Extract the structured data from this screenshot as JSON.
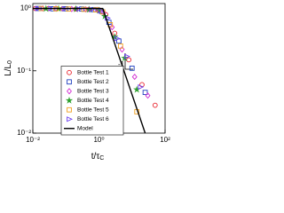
{
  "chart_data": {
    "type": "scatter",
    "xlabel": "t/τ",
    "xlabel_subscript": "C",
    "ylabel": "L/L",
    "ylabel_subscript": "0",
    "xlog": true,
    "ylog": true,
    "xlim": [
      0.01,
      100
    ],
    "ylim": [
      0.01,
      1.2
    ],
    "xticks": [
      {
        "value": 0.01,
        "label": "10⁻²"
      },
      {
        "value": 1,
        "label": "10⁰"
      },
      {
        "value": 100,
        "label": "10²"
      }
    ],
    "yticks": [
      {
        "value": 0.01,
        "label": "10⁻²"
      },
      {
        "value": 0.1,
        "label": "10⁻¹"
      },
      {
        "value": 1,
        "label": "10⁰"
      }
    ],
    "annotation": "-1",
    "legend": "lower left",
    "series": [
      {
        "name": "Bottle Test 1",
        "marker": "circle",
        "color": "#e8202a",
        "x": [
          0.012,
          0.03,
          0.08,
          0.2,
          0.5,
          1.0,
          1.6,
          3,
          8,
          20,
          50
        ],
        "y": [
          1,
          1,
          0.99,
          0.98,
          0.97,
          0.95,
          0.8,
          0.4,
          0.15,
          0.06,
          0.028
        ]
      },
      {
        "name": "Bottle Test 2",
        "marker": "square",
        "color": "#1f3fbf",
        "x": [
          0.015,
          0.04,
          0.1,
          0.3,
          0.7,
          1.2,
          2,
          4,
          10,
          25
        ],
        "y": [
          1,
          0.99,
          0.99,
          0.98,
          0.96,
          0.9,
          0.6,
          0.3,
          0.11,
          0.045
        ]
      },
      {
        "name": "Bottle Test 3",
        "marker": "diamond",
        "color": "#d22cd2",
        "x": [
          0.02,
          0.05,
          0.15,
          0.4,
          0.9,
          1.4,
          2.5,
          5,
          12,
          30
        ],
        "y": [
          1,
          1,
          0.98,
          0.97,
          0.95,
          0.85,
          0.5,
          0.22,
          0.08,
          0.04
        ]
      },
      {
        "name": "Bottle Test 4",
        "marker": "star",
        "color": "#2ca02c",
        "x": [
          0.025,
          0.06,
          0.2,
          0.5,
          1.0,
          1.5,
          3,
          6,
          14
        ],
        "y": [
          0.99,
          0.99,
          0.98,
          0.96,
          0.93,
          0.75,
          0.35,
          0.16,
          0.05
        ]
      },
      {
        "name": "Bottle Test 5",
        "marker": "square",
        "color": "#f0a020",
        "x": [
          0.018,
          0.05,
          0.12,
          0.35,
          0.8,
          1.3,
          2.2,
          4.5,
          14
        ],
        "y": [
          1,
          0.99,
          0.98,
          0.97,
          0.95,
          0.88,
          0.55,
          0.25,
          0.022
        ]
      },
      {
        "name": "Bottle Test 6",
        "marker": "triangle",
        "color": "#6a3df0",
        "x": [
          0.014,
          0.035,
          0.09,
          0.25,
          0.6,
          1.1,
          1.8,
          3.5,
          7,
          18
        ],
        "y": [
          1,
          1,
          0.99,
          0.98,
          0.96,
          0.92,
          0.7,
          0.33,
          0.17,
          0.055
        ]
      },
      {
        "name": "Model",
        "marker": "line",
        "color": "#000000",
        "x": [
          0.01,
          1.3,
          25
        ],
        "y": [
          1,
          1,
          0.01
        ]
      }
    ]
  }
}
